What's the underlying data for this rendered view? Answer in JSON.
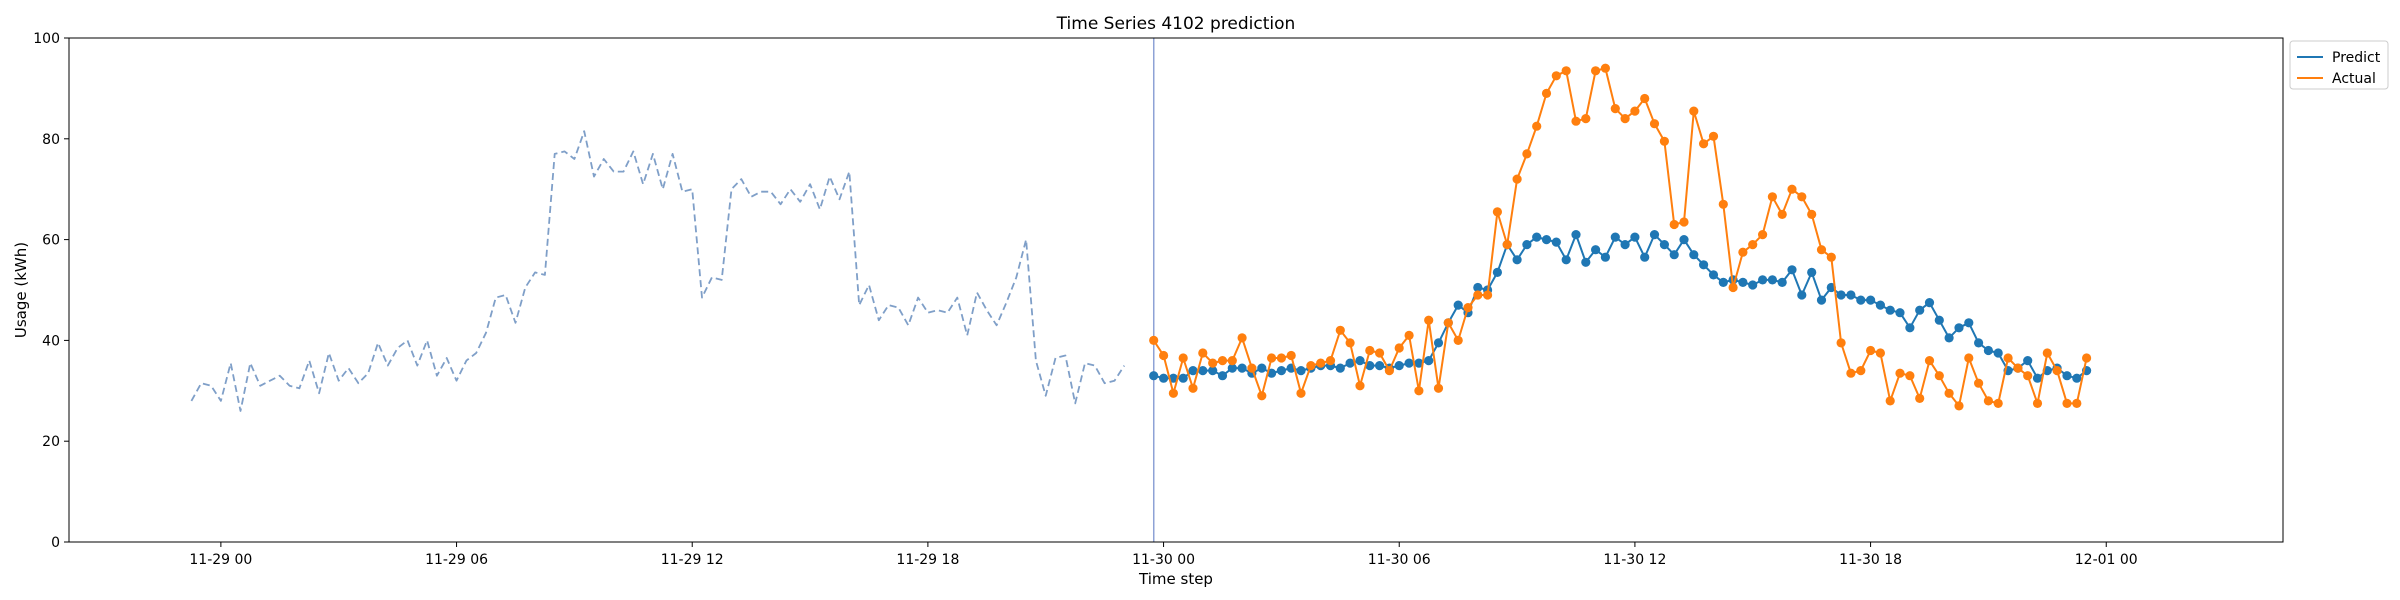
{
  "chart_data": {
    "type": "line",
    "title": "Time Series 4102 prediction",
    "xlabel": "Time step",
    "ylabel": "Usage (kWh)",
    "ylim": [
      0,
      100
    ],
    "yticks": [
      0,
      20,
      40,
      60,
      80,
      100
    ],
    "xlim": [
      "11-28 20:08",
      "12-01 04:30"
    ],
    "xticks": [
      {
        "t": "11-29 00:00",
        "label": "11-29 00"
      },
      {
        "t": "11-29 06:00",
        "label": "11-29 06"
      },
      {
        "t": "11-29 12:00",
        "label": "11-29 12"
      },
      {
        "t": "11-29 18:00",
        "label": "11-29 18"
      },
      {
        "t": "11-30 00:00",
        "label": "11-30 00"
      },
      {
        "t": "11-30 06:00",
        "label": "11-30 06"
      },
      {
        "t": "11-30 12:00",
        "label": "11-30 12"
      },
      {
        "t": "11-30 18:00",
        "label": "11-30 18"
      },
      {
        "t": "12-01 00:00",
        "label": "12-01 00"
      }
    ],
    "interval_minutes": 15,
    "forecast_start_line": "11-29 23:45",
    "legend": {
      "position": "top-right, outside plot"
    },
    "series": [
      {
        "style": "dashed",
        "color": "#7f9fc8",
        "start": "11-28 23:15",
        "values": [
          28,
          31.5,
          31,
          28,
          35.5,
          26,
          35.5,
          31,
          32,
          33,
          31,
          30.5,
          36,
          29.5,
          37.5,
          32,
          34.5,
          31.5,
          33.5,
          39.5,
          35,
          38.5,
          40,
          35,
          40,
          33,
          36.5,
          32,
          36,
          37.5,
          41.5,
          48.5,
          49,
          43.5,
          50.5,
          53.5,
          53,
          77,
          77.5,
          76,
          81.5,
          72.5,
          76,
          73.5,
          73.5,
          77.5,
          71,
          77,
          70,
          77,
          69.5,
          70,
          48.5,
          52.5,
          52,
          70,
          72,
          68.5,
          69.5,
          69.5,
          67,
          70,
          67.5,
          71,
          66,
          72.5,
          68,
          73.5,
          47,
          51,
          44,
          47,
          46.5,
          43,
          48.5,
          45.5,
          46,
          45.5,
          48.5,
          41,
          49.5,
          46,
          43,
          47.5,
          52.5,
          60,
          36,
          29,
          36.5,
          37,
          27.5,
          35.5,
          35,
          31.5,
          32,
          35
        ]
      },
      {
        "name": "Predict",
        "color": "#1f77b4",
        "start": "11-29 23:45",
        "values": [
          33,
          32.5,
          32.5,
          32.5,
          34,
          34,
          34,
          33,
          34.5,
          34.5,
          33.5,
          34.5,
          33.5,
          34,
          34.5,
          34,
          34.5,
          35,
          35,
          34.5,
          35.5,
          36,
          35,
          35,
          34.5,
          35,
          35.5,
          35.5,
          36,
          39.5,
          43.5,
          47,
          45.5,
          50.5,
          50,
          53.5,
          59,
          56,
          59,
          60.5,
          60,
          59.5,
          56,
          61,
          55.5,
          58,
          56.5,
          60.5,
          59,
          60.5,
          56.5,
          61,
          59,
          57,
          60,
          57,
          55,
          53,
          51.5,
          52,
          51.5,
          51,
          52,
          52,
          51.5,
          54,
          49,
          53.5,
          48,
          50.5,
          49,
          49,
          48,
          48,
          47,
          46,
          45.5,
          42.5,
          46,
          47.5,
          44,
          40.5,
          42.5,
          43.5,
          39.5,
          38,
          37.5,
          34,
          34.5,
          36,
          32.5,
          34,
          34.5,
          33,
          32.5,
          34
        ]
      },
      {
        "name": "Actual",
        "color": "#ff7f0e",
        "start": "11-29 23:45",
        "values": [
          40,
          37,
          29.5,
          36.5,
          30.5,
          37.5,
          35.5,
          36,
          36,
          40.5,
          34.5,
          29,
          36.5,
          36.5,
          37,
          29.5,
          35,
          35.5,
          36,
          42,
          39.5,
          31,
          38,
          37.5,
          34,
          38.5,
          41,
          30,
          44,
          30.5,
          43.5,
          40,
          46.5,
          49,
          49,
          65.5,
          59,
          72,
          77,
          82.5,
          89,
          92.5,
          93.5,
          83.5,
          84,
          93.5,
          94,
          86,
          84,
          85.5,
          88,
          83,
          79.5,
          63,
          63.5,
          85.5,
          79,
          80.5,
          67,
          50.5,
          57.5,
          59,
          61,
          68.5,
          65,
          70,
          68.5,
          65,
          58,
          56.5,
          39.5,
          33.5,
          34,
          38,
          37.5,
          28,
          33.5,
          33,
          28.5,
          36,
          33,
          29.5,
          27,
          36.5,
          31.5,
          28,
          27.5,
          36.5,
          34.5,
          33,
          27.5,
          37.5,
          34,
          27.5,
          27.5,
          36.5
        ]
      }
    ]
  }
}
